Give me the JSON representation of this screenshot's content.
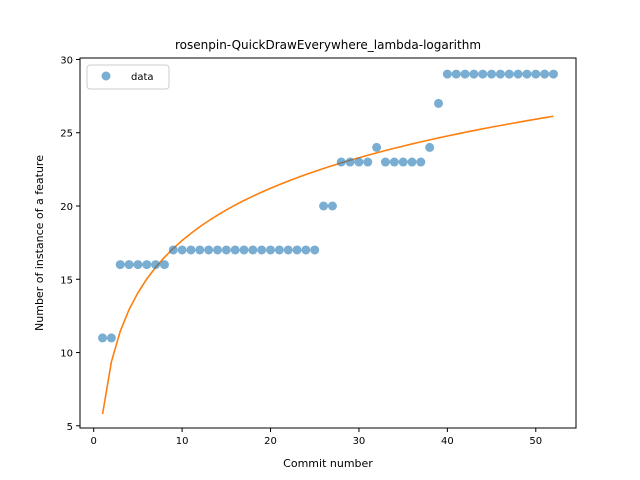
{
  "chart_data": {
    "type": "scatter",
    "title": "rosenpin-QuickDrawEverywhere_lambda-logarithm",
    "xlabel": "Commit number",
    "ylabel": "Number of instance of a feature",
    "xlim": [
      -1.55,
      54.55
    ],
    "ylim": [
      4.85,
      30.1
    ],
    "xticks": [
      0,
      10,
      20,
      30,
      40,
      50
    ],
    "yticks": [
      5,
      10,
      15,
      20,
      25,
      30
    ],
    "grid": false,
    "legend_position": "top-left",
    "series": [
      {
        "name": "data",
        "kind": "scatter",
        "color": "#1f77b4",
        "x": [
          1,
          2,
          3,
          4,
          5,
          6,
          7,
          8,
          9,
          10,
          11,
          12,
          13,
          14,
          15,
          16,
          17,
          18,
          19,
          20,
          21,
          22,
          23,
          24,
          25,
          26,
          27,
          28,
          29,
          30,
          31,
          32,
          33,
          34,
          35,
          36,
          37,
          38,
          39,
          40,
          41,
          42,
          43,
          44,
          45,
          46,
          47,
          48,
          49,
          50,
          51,
          52
        ],
        "y": [
          11,
          11,
          16,
          16,
          16,
          16,
          16,
          16,
          17,
          17,
          17,
          17,
          17,
          17,
          17,
          17,
          17,
          17,
          17,
          17,
          17,
          17,
          17,
          17,
          17,
          20,
          20,
          23,
          23,
          23,
          23,
          24,
          23,
          23,
          23,
          23,
          23,
          24,
          27,
          29,
          29,
          29,
          29,
          29,
          29,
          29,
          29,
          29,
          29,
          29,
          29,
          29
        ]
      },
      {
        "kind": "line",
        "color": "#ff7f0e",
        "fit": {
          "a": 5.8,
          "b": 5.144
        },
        "x": [
          1,
          2,
          3,
          4,
          5,
          6,
          7,
          8,
          9,
          10,
          11,
          12,
          13,
          14,
          15,
          16,
          17,
          18,
          19,
          20,
          21,
          22,
          23,
          24,
          25,
          26,
          27,
          28,
          29,
          30,
          31,
          32,
          33,
          34,
          35,
          36,
          37,
          38,
          39,
          40,
          41,
          42,
          43,
          44,
          45,
          46,
          47,
          48,
          49,
          50,
          51,
          52
        ]
      }
    ]
  }
}
